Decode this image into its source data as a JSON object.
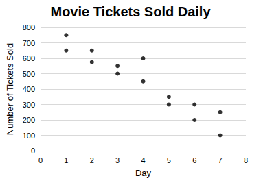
{
  "chart_data": {
    "type": "scatter",
    "title": "Movie Tickets Sold Daily",
    "xlabel": "Day",
    "ylabel": "Number of Tickets Sold",
    "x": [
      1,
      1,
      2,
      2,
      3,
      3,
      4,
      4,
      5,
      5,
      6,
      6,
      7,
      7
    ],
    "values": [
      750,
      650,
      650,
      575,
      550,
      500,
      600,
      450,
      350,
      300,
      300,
      200,
      250,
      100
    ],
    "color": "#000000",
    "marker": "circle",
    "xlim": [
      0,
      8
    ],
    "xticks": [
      0,
      1,
      2,
      3,
      4,
      5,
      6,
      7,
      8
    ],
    "ylim": [
      0,
      800
    ],
    "yticks": [
      0,
      100,
      200,
      300,
      400,
      500,
      600,
      700,
      800
    ],
    "grid": true
  }
}
